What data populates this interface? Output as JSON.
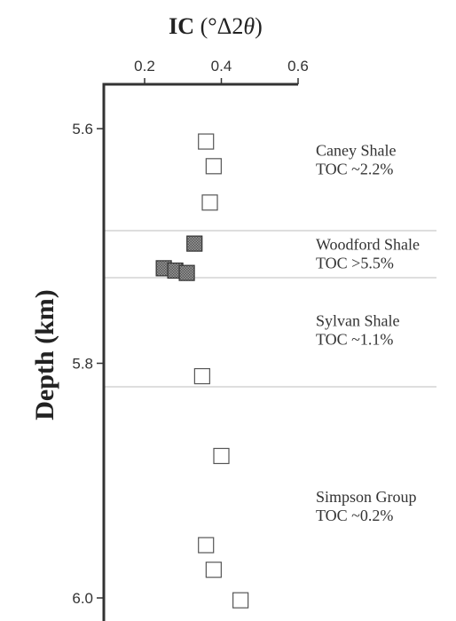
{
  "chart_data": {
    "type": "scatter",
    "x_axis": {
      "title": "IC (°Δ2θ)",
      "range": [
        0.1,
        0.6
      ],
      "ticks": [
        0.2,
        0.4,
        0.6
      ],
      "tick_labels": [
        "0.2",
        "0.4",
        "0.6"
      ],
      "position": "top"
    },
    "y_axis": {
      "title": "Depth (km)",
      "range": [
        5.56,
        6.02
      ],
      "inverted": true,
      "ticks": [
        5.6,
        5.8,
        6.0
      ],
      "tick_labels": [
        "5.6",
        "5.8",
        "6.0"
      ]
    },
    "grid": false,
    "boundaries": [
      5.687,
      5.727,
      5.82
    ],
    "series": [
      {
        "style": "open-square",
        "color": "#ffffff",
        "stroke": "#555555",
        "points": [
          {
            "x": 0.36,
            "y": 5.611
          },
          {
            "x": 0.38,
            "y": 5.632
          },
          {
            "x": 0.37,
            "y": 5.663
          },
          {
            "x": 0.35,
            "y": 5.811
          },
          {
            "x": 0.4,
            "y": 5.879
          },
          {
            "x": 0.36,
            "y": 5.955
          },
          {
            "x": 0.38,
            "y": 5.976
          },
          {
            "x": 0.45,
            "y": 6.002
          }
        ]
      },
      {
        "style": "filled-square",
        "color": "#8a8a8a",
        "stroke": "#333333",
        "points": [
          {
            "x": 0.33,
            "y": 5.698
          },
          {
            "x": 0.25,
            "y": 5.719
          },
          {
            "x": 0.28,
            "y": 5.721
          },
          {
            "x": 0.31,
            "y": 5.723
          }
        ]
      }
    ],
    "annotations": [
      {
        "name": "Caney Shale",
        "toc": "TOC ~2.2%",
        "anchor_depth": 5.627
      },
      {
        "name": "Woodford Shale",
        "toc": "TOC >5.5%",
        "anchor_depth": 5.707
      },
      {
        "name": "Sylvan Shale",
        "toc": "TOC ~1.1%",
        "anchor_depth": 5.772
      },
      {
        "name": "Simpson Group",
        "toc": "TOC ~0.2%",
        "anchor_depth": 5.922
      }
    ]
  }
}
